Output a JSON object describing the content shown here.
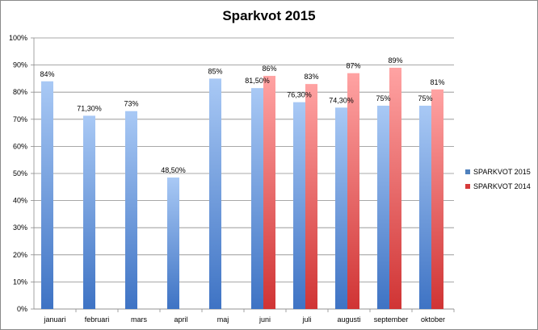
{
  "chart_data": {
    "type": "bar",
    "title": "Sparkvot 2015",
    "xlabel": "",
    "ylabel": "",
    "ylim": [
      0,
      100
    ],
    "y_ticks": [
      "0%",
      "10%",
      "20%",
      "30%",
      "40%",
      "50%",
      "60%",
      "70%",
      "80%",
      "90%",
      "100%"
    ],
    "grid": true,
    "legend_position": "right",
    "categories": [
      "januari",
      "februari",
      "mars",
      "april",
      "maj",
      "juni",
      "juli",
      "augusti",
      "september",
      "oktober"
    ],
    "series": [
      {
        "name": "SPARKVOT 2015",
        "color": "#4f81bd",
        "color_light": "#a8c8f4",
        "values": [
          84,
          71.3,
          73,
          48.5,
          85,
          81.5,
          76.3,
          74.3,
          75,
          75
        ],
        "labels": [
          "84%",
          "71,30%",
          "73%",
          "48,50%",
          "85%",
          "81,50%",
          "76,30%",
          "74,30%",
          "75%",
          "75%"
        ]
      },
      {
        "name": "SPARKVOT 2014",
        "color": "#d63a3a",
        "color_light": "#ffa0a0",
        "values": [
          null,
          null,
          null,
          null,
          null,
          86,
          83,
          87,
          89,
          81
        ],
        "labels": [
          "",
          "",
          "",
          "",
          "",
          "86%",
          "83%",
          "87%",
          "89%",
          "81%"
        ]
      }
    ]
  }
}
